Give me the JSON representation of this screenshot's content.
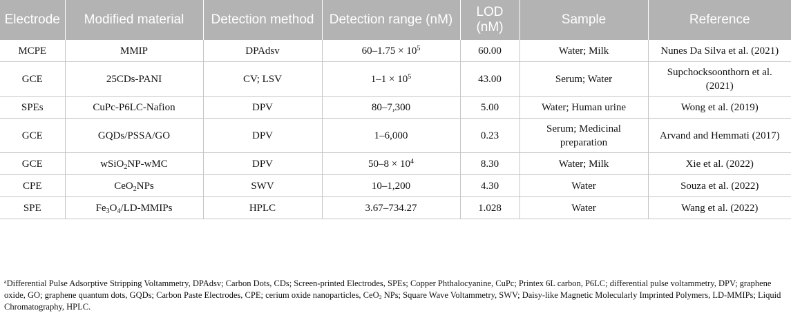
{
  "table": {
    "headers": {
      "electrode": "Electrode",
      "modified_material": "Modified material",
      "detection_method": "Detection method",
      "detection_range": "Detection range (nM)",
      "lod": "LOD (nM)",
      "sample": "Sample",
      "reference": "Reference"
    },
    "rows": [
      {
        "electrode": "MCPE",
        "material": "MMIP",
        "method": "DPAdsv",
        "range_base": "60–1.75 × 10",
        "range_exp": "5",
        "lod": "60.00",
        "sample": "Water; Milk",
        "reference": "Nunes Da Silva et al. (2021)"
      },
      {
        "electrode": "GCE",
        "material": "25CDs-PANI",
        "method": "CV; LSV",
        "range_base": "1–1 × 10",
        "range_exp": "5",
        "lod": "43.00",
        "sample": "Serum; Water",
        "reference": "Supchocksoonthorn et al. (2021)"
      },
      {
        "electrode": "SPEs",
        "material": "CuPc-P6LC-Nafion",
        "method": "DPV",
        "range_base": "80–7,300",
        "range_exp": "",
        "lod": "5.00",
        "sample": "Water; Human urine",
        "reference": "Wong et al. (2019)"
      },
      {
        "electrode": "GCE",
        "material": "GQDs/PSSA/GO",
        "method": "DPV",
        "range_base": "1–6,000",
        "range_exp": "",
        "lod": "0.23",
        "sample": "Serum; Medicinal preparation",
        "reference": "Arvand and Hemmati (2017)"
      },
      {
        "electrode": "GCE",
        "material_pre": "wSiO",
        "material_sub": "2",
        "material_post": "NP-wMC",
        "method": "DPV",
        "range_base": "50–8 × 10",
        "range_exp": "4",
        "lod": "8.30",
        "sample": "Water; Milk",
        "reference": "Xie et al. (2022)"
      },
      {
        "electrode": "CPE",
        "material_pre": "CeO",
        "material_sub": "2",
        "material_post": "NPs",
        "method": "SWV",
        "range_base": "10–1,200",
        "range_exp": "",
        "lod": "4.30",
        "sample": "Water",
        "reference": "Souza et al. (2022)"
      },
      {
        "electrode": "SPE",
        "material_pre": "Fe",
        "material_sub": "3",
        "material_mid": "O",
        "material_sub2": "4",
        "material_post": "/LD-MMIPs",
        "method": "HPLC",
        "range_base": "3.67–734.27",
        "range_exp": "",
        "lod": "1.028",
        "sample": "Water",
        "reference": "Wang et al. (2022)"
      }
    ]
  },
  "footnote": {
    "marker": "a",
    "text_pre": "Differential Pulse Adsorptive Stripping Voltammetry, DPAdsv; Carbon Dots, CDs; Screen-printed Electrodes, SPEs; Copper Phthalocyanine, CuPc; Printex 6L carbon, P6LC; differential pulse voltammetry, DPV; graphene oxide, GO; graphene quantum dots, GQDs; Carbon Paste Electrodes, CPE; cerium oxide nanoparticles, CeO",
    "sub": "2",
    "text_post": " NPs; Square Wave Voltammetry, SWV; Daisy-like Magnetic Molecularly Imprinted Polymers, LD-MMIPs; Liquid Chromatography, HPLC."
  }
}
